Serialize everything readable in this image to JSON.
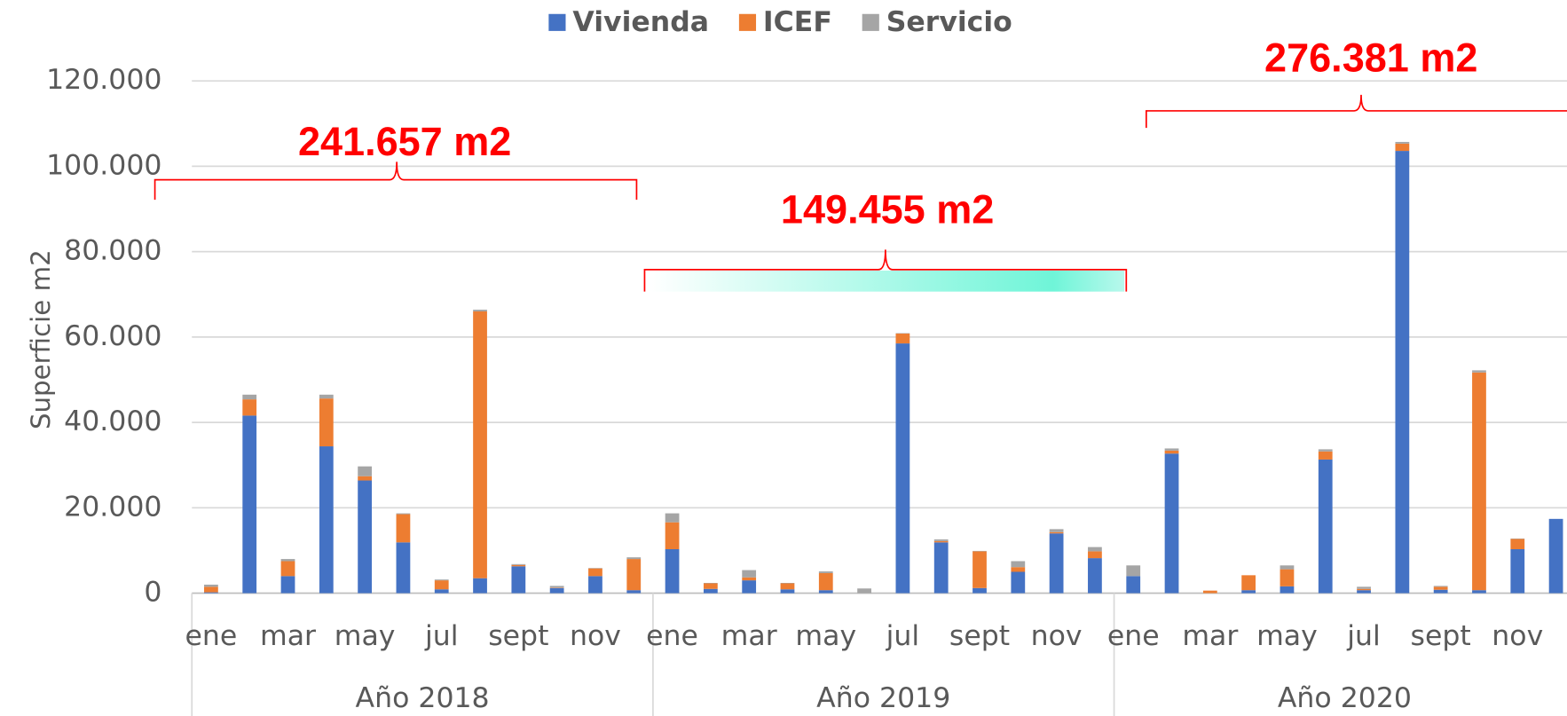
{
  "chart_data": {
    "type": "stacked_bar",
    "y_label": "Superficie m2",
    "categories": [
      "ene",
      null,
      "mar",
      null,
      "may",
      null,
      "jul",
      null,
      "sept",
      null,
      "nov",
      null,
      "ene",
      null,
      "mar",
      null,
      "may",
      null,
      "jul",
      null,
      "sept",
      null,
      "nov",
      null,
      "ene",
      null,
      "mar",
      null,
      "may",
      null,
      "jul",
      null,
      "sept",
      null,
      "nov",
      null
    ],
    "groups": [
      "Año 2018",
      "Año 2019",
      "Año 2020"
    ],
    "series": [
      {
        "name": "Vivienda",
        "color": "#4472c4",
        "values": [
          200,
          41600,
          4000,
          34400,
          26400,
          11900,
          900,
          3500,
          6300,
          1200,
          4000,
          700,
          10300,
          1000,
          3000,
          900,
          700,
          0,
          58500,
          11900,
          1200,
          5000,
          14000,
          8200,
          4000,
          32700,
          0,
          700,
          1600,
          31300,
          700,
          103600,
          800,
          700,
          10300,
          17400
        ]
      },
      {
        "name": "ICEF",
        "color": "#ed7d31",
        "values": [
          1300,
          3800,
          3500,
          11200,
          1000,
          6600,
          2100,
          62500,
          300,
          100,
          1800,
          7300,
          6300,
          1300,
          700,
          1400,
          4000,
          0,
          2300,
          300,
          8600,
          1100,
          300,
          1600,
          0,
          700,
          600,
          3500,
          4000,
          1900,
          300,
          1700,
          700,
          51000,
          2400,
          0
        ]
      },
      {
        "name": "Servicio",
        "color": "#a5a5a5",
        "values": [
          500,
          1100,
          500,
          900,
          2300,
          200,
          200,
          400,
          200,
          400,
          100,
          400,
          2100,
          100,
          1700,
          100,
          400,
          1100,
          100,
          400,
          100,
          1400,
          700,
          1000,
          2500,
          500,
          0,
          0,
          900,
          500,
          500,
          400,
          200,
          500,
          100,
          0
        ]
      }
    ],
    "annotations": [
      "241.657 m2",
      "149.455 m2",
      "276.381 m2"
    ],
    "ylim": [
      0,
      120000
    ],
    "yticks": [
      0,
      {
        "value": 20000,
        "label": "20.000"
      },
      {
        "value": 40000,
        "label": "40.000"
      },
      {
        "value": 60000,
        "label": "60.000"
      },
      {
        "value": 80000,
        "label": "80.000"
      },
      {
        "value": 100000,
        "label": "100.000"
      },
      {
        "value": 120000,
        "label": "120.000"
      }
    ],
    "grid": true,
    "legend": "top"
  }
}
